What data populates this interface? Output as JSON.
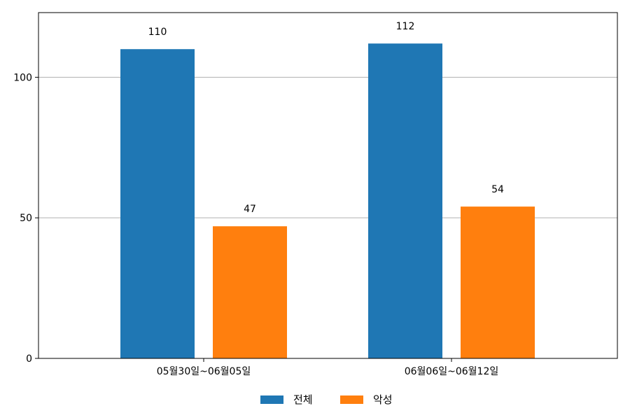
{
  "chart_data": {
    "type": "bar",
    "categories": [
      "05월30일~06월05일",
      "06월06일~06월12일"
    ],
    "series": [
      {
        "name": "전체",
        "values": [
          110,
          112
        ],
        "color": "#1f77b4"
      },
      {
        "name": "악성",
        "values": [
          47,
          54
        ],
        "color": "#ff7f0e"
      }
    ],
    "ylim": [
      0,
      123
    ],
    "yticks": [
      0,
      50,
      100
    ],
    "grid": "y",
    "legend": "bottom-center"
  }
}
